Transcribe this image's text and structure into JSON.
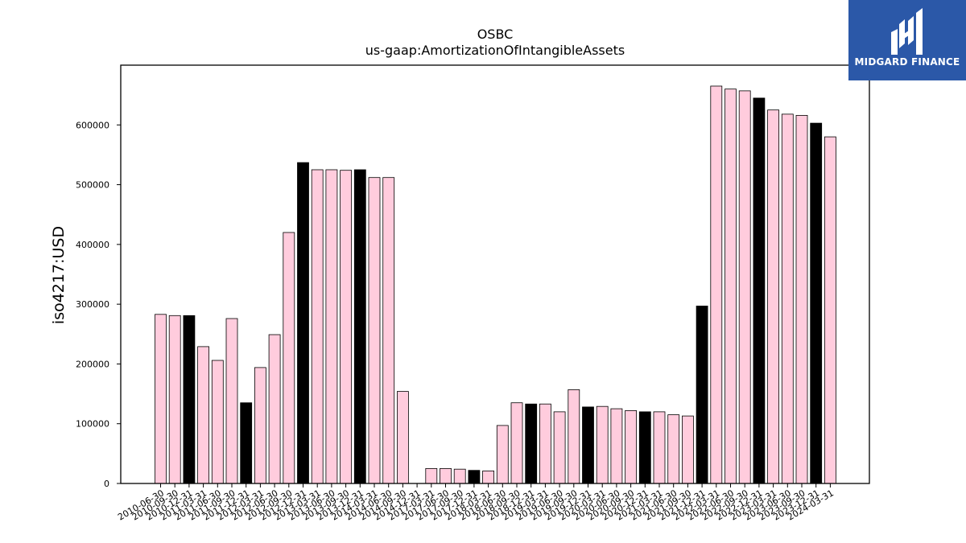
{
  "chart_data": {
    "type": "bar",
    "title": "OSBC",
    "subtitle": "us-gaap:AmortizationOfIntangibleAssets",
    "ylabel": "iso4217:USD",
    "xlabel": "",
    "ylim": [
      0,
      700000
    ],
    "yticks": [
      0,
      100000,
      200000,
      300000,
      400000,
      500000,
      600000
    ],
    "ytick_labels": [
      "0",
      "100000",
      "200000",
      "300000",
      "400000",
      "500000",
      "600000"
    ],
    "grid": false,
    "colors": {
      "regular": "#ffccdd",
      "highlight": "#000000",
      "edge": "#000000"
    },
    "categories": [
      "2010-06-30",
      "2010-09-30",
      "2010-12-31",
      "2011-03-31",
      "2011-06-30",
      "2011-09-30",
      "2011-12-31",
      "2012-03-31",
      "2012-06-30",
      "2012-09-30",
      "2012-12-31",
      "2013-03-31",
      "2013-06-30",
      "2013-09-30",
      "2013-12-31",
      "2014-03-31",
      "2014-06-30",
      "2014-09-30",
      "2014-12-31",
      "2017-03-31",
      "2017-06-30",
      "2017-09-30",
      "2017-12-31",
      "2018-03-31",
      "2018-06-30",
      "2018-09-30",
      "2018-12-31",
      "2019-03-31",
      "2019-06-30",
      "2019-09-30",
      "2019-12-31",
      "2020-03-31",
      "2020-06-30",
      "2020-09-30",
      "2020-12-31",
      "2021-03-31",
      "2021-06-30",
      "2021-09-30",
      "2021-12-31",
      "2022-03-31",
      "2022-06-30",
      "2022-09-30",
      "2022-12-31",
      "2023-03-31",
      "2023-06-30",
      "2023-09-30",
      "2023-12-31",
      "2024-03-31"
    ],
    "values": [
      283000,
      281000,
      281000,
      229000,
      206000,
      276000,
      135000,
      194000,
      249000,
      420000,
      537000,
      525000,
      525000,
      524000,
      525000,
      512000,
      512000,
      154000,
      0,
      25000,
      25000,
      24000,
      22000,
      21000,
      97000,
      135000,
      133000,
      133000,
      120000,
      157000,
      128000,
      129000,
      125000,
      122000,
      120000,
      120000,
      115000,
      113000,
      297000,
      665000,
      660000,
      657000,
      645000,
      625000,
      618000,
      616000,
      603000,
      580000
    ],
    "highlight": [
      false,
      false,
      true,
      false,
      false,
      false,
      true,
      false,
      false,
      false,
      true,
      false,
      false,
      false,
      true,
      false,
      false,
      false,
      false,
      false,
      false,
      false,
      true,
      false,
      false,
      false,
      true,
      false,
      false,
      false,
      true,
      false,
      false,
      false,
      true,
      false,
      false,
      false,
      true,
      false,
      false,
      false,
      true,
      false,
      false,
      false,
      true,
      false
    ]
  },
  "logo": {
    "text": "MIDGARD FINANCE",
    "background": "#2b58a8",
    "foreground": "#ffffff"
  }
}
